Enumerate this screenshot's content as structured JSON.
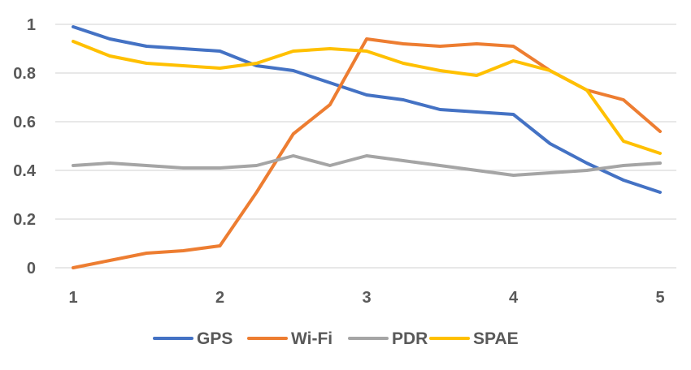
{
  "chart_data": {
    "type": "line",
    "title": "",
    "xlabel": "",
    "ylabel": "",
    "x": [
      1,
      1.25,
      1.5,
      1.75,
      2,
      2.25,
      2.5,
      2.75,
      3,
      3.25,
      3.5,
      3.75,
      4,
      4.25,
      4.5,
      4.75,
      5
    ],
    "xlim": [
      1,
      5
    ],
    "ylim": [
      0,
      1
    ],
    "xticks": [
      "1",
      "2",
      "3",
      "4",
      "5"
    ],
    "yticks": [
      "0",
      "0.2",
      "0.4",
      "0.6",
      "0.8",
      "1"
    ],
    "grid": "horizontal",
    "legend_position": "bottom",
    "series": [
      {
        "name": "GPS",
        "color": "#4472C4",
        "values": [
          0.99,
          0.94,
          0.91,
          0.9,
          0.89,
          0.83,
          0.81,
          0.76,
          0.71,
          0.69,
          0.65,
          0.64,
          0.63,
          0.51,
          0.43,
          0.36,
          0.31
        ]
      },
      {
        "name": "Wi-Fi",
        "color": "#ED7D31",
        "values": [
          0.0,
          0.03,
          0.06,
          0.07,
          0.09,
          0.31,
          0.55,
          0.67,
          0.94,
          0.92,
          0.91,
          0.92,
          0.91,
          0.81,
          0.73,
          0.69,
          0.56
        ]
      },
      {
        "name": "PDR",
        "color": "#A5A5A5",
        "values": [
          0.42,
          0.43,
          0.42,
          0.41,
          0.41,
          0.42,
          0.46,
          0.42,
          0.46,
          0.44,
          0.42,
          0.4,
          0.38,
          0.39,
          0.4,
          0.42,
          0.43
        ]
      },
      {
        "name": "SPAE",
        "color": "#FFC000",
        "values": [
          0.93,
          0.87,
          0.84,
          0.83,
          0.82,
          0.84,
          0.89,
          0.9,
          0.89,
          0.84,
          0.81,
          0.79,
          0.85,
          0.81,
          0.73,
          0.52,
          0.47
        ]
      }
    ]
  }
}
